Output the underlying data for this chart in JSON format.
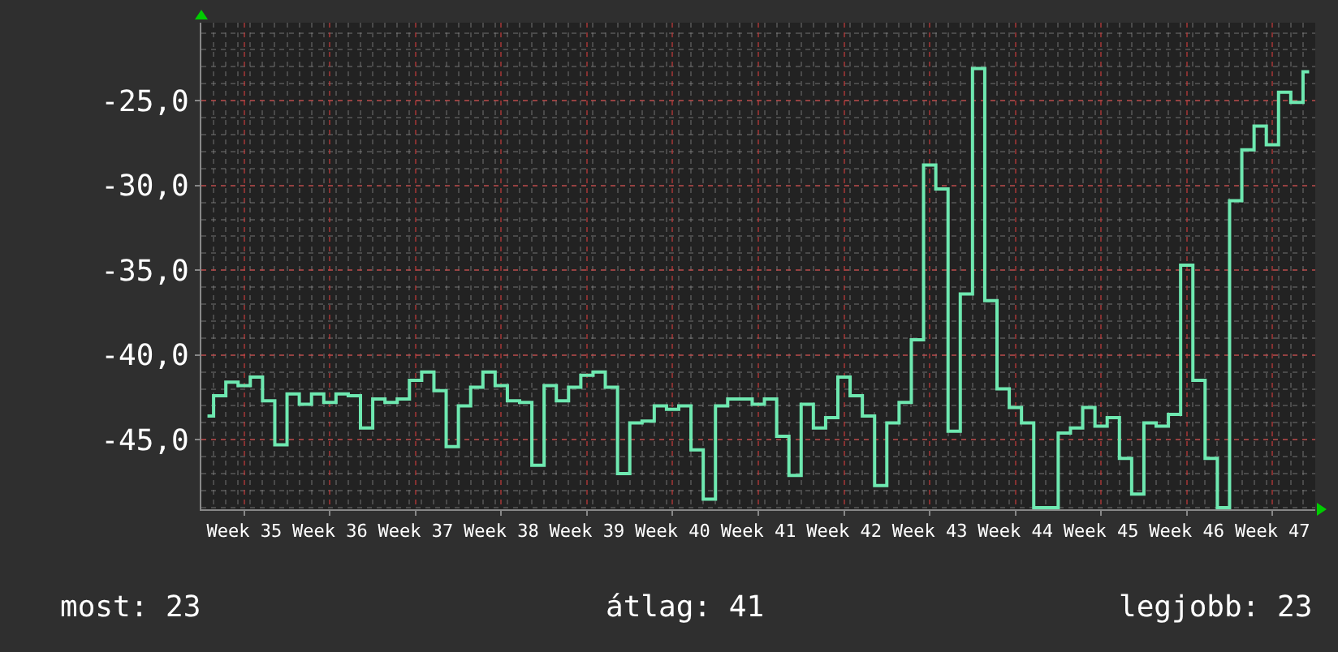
{
  "chart_data": {
    "type": "step",
    "categories": [
      null,
      null,
      null,
      "Week 35",
      null,
      null,
      null,
      null,
      null,
      null,
      "Week 36",
      null,
      null,
      null,
      null,
      null,
      null,
      "Week 37",
      null,
      null,
      null,
      null,
      null,
      null,
      "Week 38",
      null,
      null,
      null,
      null,
      null,
      null,
      "Week 39",
      null,
      null,
      null,
      null,
      null,
      null,
      "Week 40",
      null,
      null,
      null,
      null,
      null,
      null,
      "Week 41",
      null,
      null,
      null,
      null,
      null,
      null,
      "Week 42",
      null,
      null,
      null,
      null,
      null,
      null,
      "Week 43",
      null,
      null,
      null,
      null,
      null,
      null,
      "Week 44",
      null,
      null,
      null,
      null,
      null,
      null,
      "Week 45",
      null,
      null,
      null,
      null,
      null,
      null,
      "Week 46",
      null,
      null,
      null,
      null,
      null,
      null,
      "Week 47",
      null,
      null,
      null
    ],
    "series": [
      {
        "color": "#6ee8b0",
        "values": [
          -43.6,
          -42.4,
          -41.6,
          -41.8,
          -41.3,
          -42.7,
          -45.3,
          -42.3,
          -42.9,
          -42.3,
          -42.8,
          -42.3,
          -42.4,
          -44.3,
          -42.6,
          -42.8,
          -42.6,
          -41.5,
          -41.0,
          -42.1,
          -45.4,
          -43.0,
          -41.9,
          -41.0,
          -41.8,
          -42.7,
          -42.8,
          -46.5,
          -41.8,
          -42.7,
          -41.9,
          -41.2,
          -41.0,
          -41.9,
          -47.0,
          -44.0,
          -43.9,
          -43.0,
          -43.2,
          -43.0,
          -45.6,
          -48.5,
          -43.0,
          -42.6,
          -42.6,
          -42.9,
          -42.6,
          -44.8,
          -47.1,
          -42.9,
          -44.3,
          -43.7,
          -41.3,
          -42.4,
          -43.6,
          -47.7,
          -44.0,
          -42.8,
          -39.1,
          -28.8,
          -30.2,
          -44.5,
          -36.4,
          -23.1,
          -36.8,
          -42.0,
          -43.1,
          -44.0,
          -49.0,
          -49.0,
          -44.6,
          -44.3,
          -43.1,
          -44.2,
          -43.7,
          -46.1,
          -48.2,
          -44.0,
          -44.2,
          -43.5,
          -34.7,
          -41.5,
          -46.1,
          -49.0,
          -30.9,
          -27.9,
          -26.5,
          -27.6,
          -24.5,
          -25.1,
          -23.3
        ]
      }
    ],
    "ylim": [
      -49.1,
      -20.4
    ],
    "yticks": [
      {
        "value": -45,
        "label": "-45,0"
      },
      {
        "value": -40,
        "label": "-40,0"
      },
      {
        "value": -35,
        "label": "-35,0"
      },
      {
        "value": -30,
        "label": "-30,0"
      },
      {
        "value": -25,
        "label": "-25,0"
      }
    ],
    "grid": true,
    "marker": "none",
    "line_style": "solid",
    "annotations": [
      "most: 23",
      "átlag: 41",
      "legjobb: 23"
    ]
  }
}
